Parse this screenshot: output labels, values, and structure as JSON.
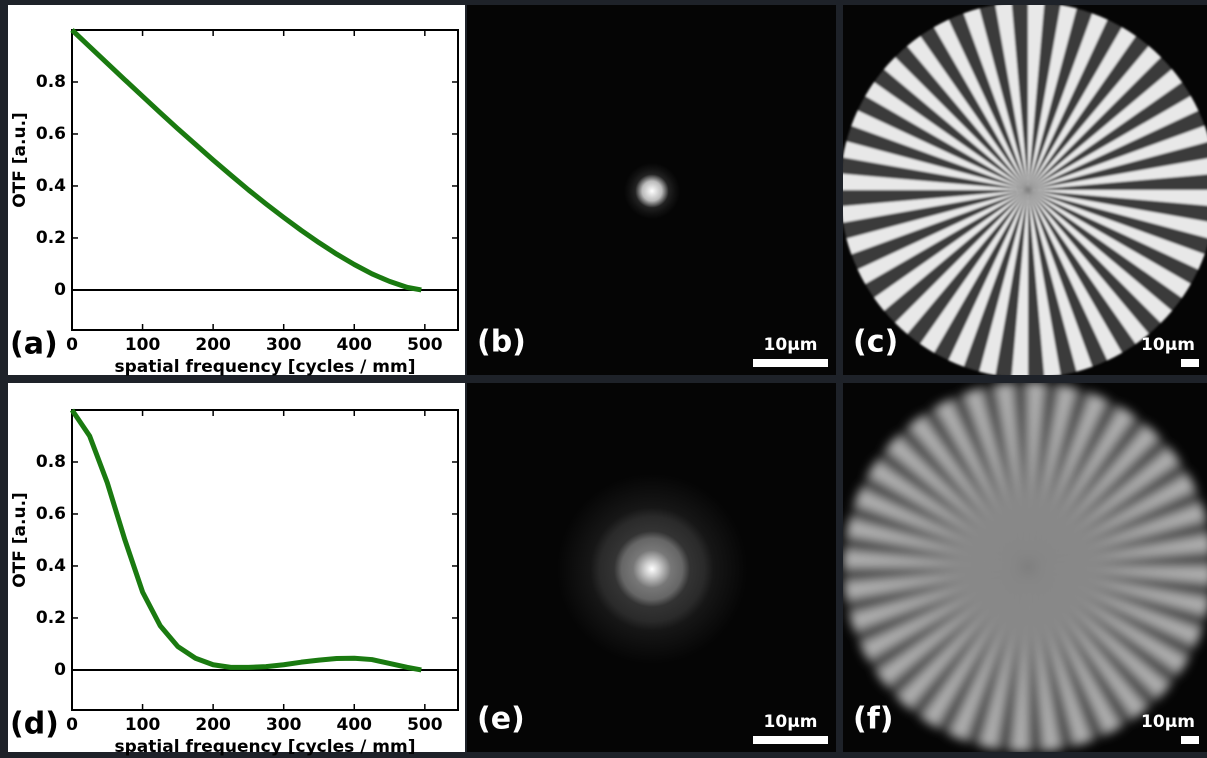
{
  "chart_data": [
    {
      "type": "line",
      "panel_label": "(a)",
      "y_label": "OTF [a.u.]",
      "x_label": "spatial frequency [cycles / mm]",
      "x": [
        0,
        25,
        50,
        75,
        100,
        125,
        150,
        175,
        200,
        225,
        250,
        275,
        300,
        325,
        350,
        375,
        400,
        425,
        450,
        475,
        495
      ],
      "series": [
        {
          "color": "#1a7a10",
          "values": [
            1,
            0.936,
            0.872,
            0.808,
            0.745,
            0.682,
            0.62,
            0.56,
            0.5,
            0.442,
            0.385,
            0.331,
            0.279,
            0.229,
            0.182,
            0.138,
            0.098,
            0.062,
            0.033,
            0.01,
            0
          ]
        }
      ],
      "xlim": [
        0,
        547
      ],
      "ylim": [
        -0.154,
        1
      ],
      "xticks": [
        0,
        100,
        200,
        300,
        400,
        500
      ],
      "yticks": [
        0,
        0.2,
        0.4,
        0.6,
        0.8
      ]
    },
    {
      "type": "line",
      "panel_label": "(d)",
      "y_label": "OTF [a.u.]",
      "x_label": "spatial frequency [cycles / mm]",
      "x": [
        0,
        25,
        50,
        75,
        100,
        125,
        150,
        175,
        200,
        225,
        250,
        275,
        300,
        325,
        350,
        375,
        400,
        425,
        450,
        475,
        495
      ],
      "series": [
        {
          "color": "#1a7a10",
          "values": [
            1,
            0.9,
            0.72,
            0.5,
            0.3,
            0.17,
            0.09,
            0.045,
            0.02,
            0.01,
            0.01,
            0.013,
            0.02,
            0.03,
            0.038,
            0.044,
            0.045,
            0.04,
            0.025,
            0.01,
            0
          ]
        }
      ],
      "xlim": [
        0,
        547
      ],
      "ylim": [
        -0.154,
        1
      ],
      "xticks": [
        0,
        100,
        200,
        300,
        400,
        500
      ],
      "yticks": [
        0,
        0.2,
        0.4,
        0.6,
        0.8
      ]
    }
  ],
  "panels": [
    {
      "label": "(b)",
      "scale_bar": "10μm"
    },
    {
      "label": "(c)",
      "scale_bar": "10μm"
    },
    {
      "label": "(e)",
      "scale_bar": "10μm"
    },
    {
      "label": "(f)",
      "scale_bar": "10μm"
    }
  ]
}
